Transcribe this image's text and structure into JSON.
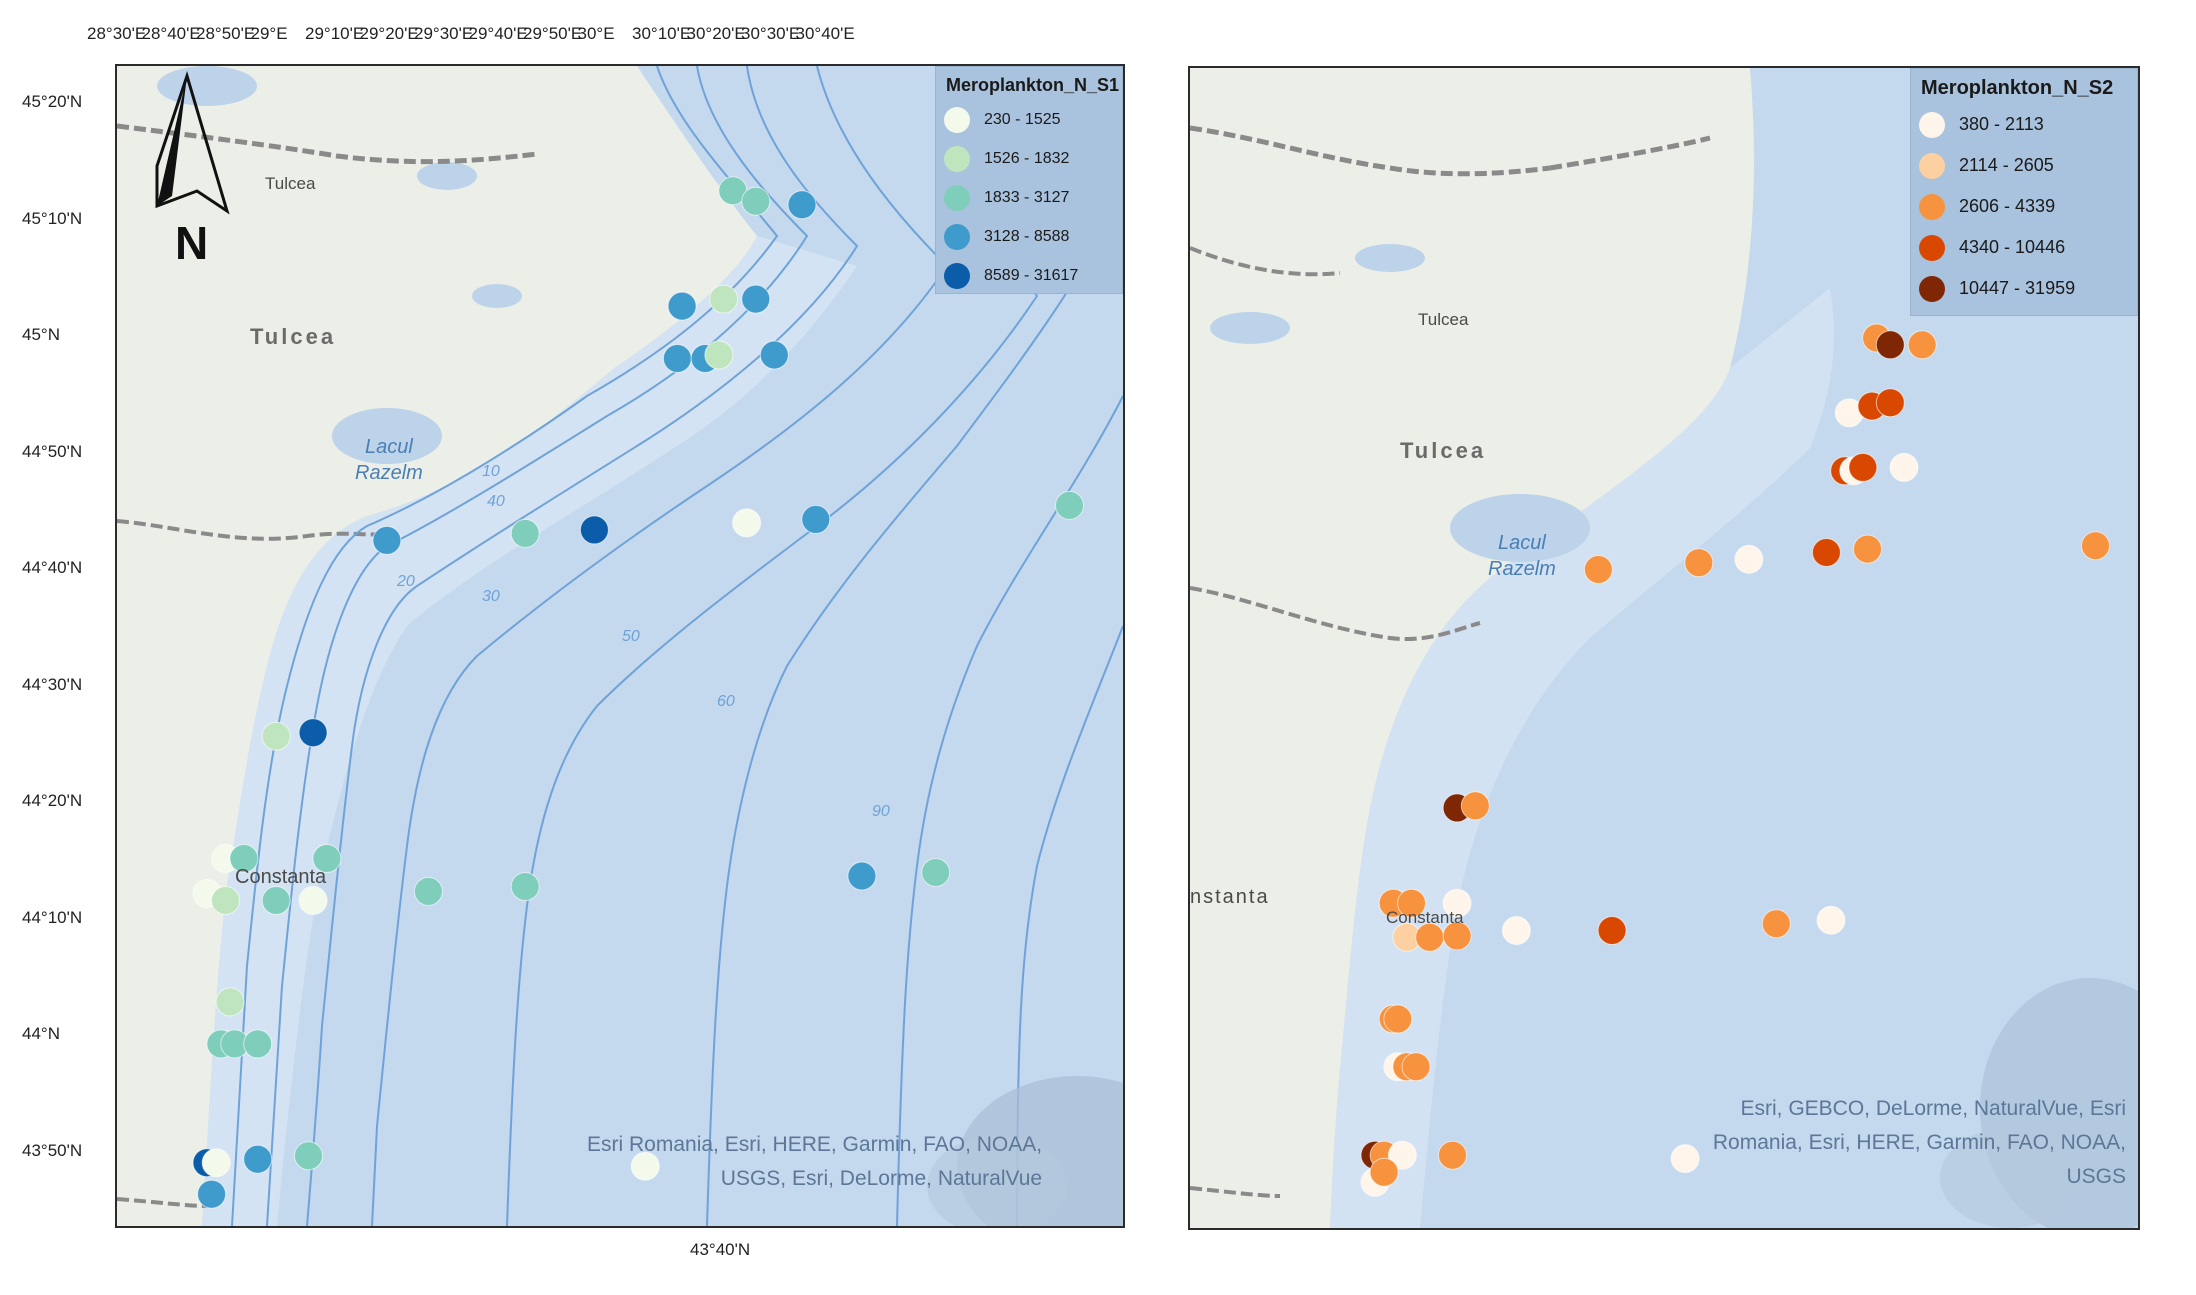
{
  "left_map": {
    "top_axis_labels": [
      "28°30'E",
      "28°40'E",
      "28°50'E",
      "29°E",
      "29°10'E",
      "29°20'E",
      "29°30'E",
      "29°40'E",
      "29°50'E",
      "30°E",
      "30°10'E",
      "30°20'E",
      "30°30'E",
      "30°40'E"
    ],
    "left_axis_labels": [
      "45°20'N",
      "45°10'N",
      "45°N",
      "44°50'N",
      "44°40'N",
      "44°30'N",
      "44°20'N",
      "44°10'N",
      "44°N",
      "43°50'N"
    ],
    "bottom_label": "43°40'N",
    "north_arrow_letter": "N",
    "places": {
      "tulcea_town": "Tulcea",
      "tulcea_region": "Tulcea",
      "lake_line1": "Lacul",
      "lake_line2": "Razelm",
      "constanta": "Constanta"
    },
    "legend": {
      "title": "Meroplankton_N_S1",
      "classes": [
        {
          "label": "230 - 1525",
          "color": "#f4faeb"
        },
        {
          "label": "1526 - 1832",
          "color": "#bfe5bf"
        },
        {
          "label": "1833 - 3127",
          "color": "#7fcdbb"
        },
        {
          "label": "3128 - 8588",
          "color": "#3f9bcb"
        },
        {
          "label": "8589 - 31617",
          "color": "#0b5ca9"
        }
      ]
    },
    "attribution_line1": "Esri Romania, Esri, HERE, Garmin, FAO, NOAA,",
    "attribution_line2": "USGS, Esri, DeLorme, NaturalVue",
    "stations": [
      {
        "lon": 29.82,
        "lat": 45.195,
        "cls": 2
      },
      {
        "lon": 29.87,
        "lat": 45.18,
        "cls": 2
      },
      {
        "lon": 29.97,
        "lat": 45.175,
        "cls": 3
      },
      {
        "lon": 29.71,
        "lat": 45.03,
        "cls": 3
      },
      {
        "lon": 29.8,
        "lat": 45.04,
        "cls": 1
      },
      {
        "lon": 29.87,
        "lat": 45.04,
        "cls": 3
      },
      {
        "lon": 29.7,
        "lat": 44.955,
        "cls": 3
      },
      {
        "lon": 29.76,
        "lat": 44.955,
        "cls": 3
      },
      {
        "lon": 29.79,
        "lat": 44.96,
        "cls": 1
      },
      {
        "lon": 29.91,
        "lat": 44.96,
        "cls": 3
      },
      {
        "lon": 29.07,
        "lat": 44.695,
        "cls": 3
      },
      {
        "lon": 29.37,
        "lat": 44.705,
        "cls": 2
      },
      {
        "lon": 29.52,
        "lat": 44.71,
        "cls": 4
      },
      {
        "lon": 29.85,
        "lat": 44.72,
        "cls": 0
      },
      {
        "lon": 30.0,
        "lat": 44.725,
        "cls": 3
      },
      {
        "lon": 30.55,
        "lat": 44.745,
        "cls": 2
      },
      {
        "lon": 28.83,
        "lat": 44.415,
        "cls": 1
      },
      {
        "lon": 28.91,
        "lat": 44.42,
        "cls": 4
      },
      {
        "lon": 28.72,
        "lat": 44.24,
        "cls": 0
      },
      {
        "lon": 28.76,
        "lat": 44.24,
        "cls": 2
      },
      {
        "lon": 28.94,
        "lat": 44.24,
        "cls": 2
      },
      {
        "lon": 28.68,
        "lat": 44.19,
        "cls": 0
      },
      {
        "lon": 28.72,
        "lat": 44.18,
        "cls": 1
      },
      {
        "lon": 28.83,
        "lat": 44.18,
        "cls": 2
      },
      {
        "lon": 28.91,
        "lat": 44.18,
        "cls": 0
      },
      {
        "lon": 29.16,
        "lat": 44.193,
        "cls": 2
      },
      {
        "lon": 29.37,
        "lat": 44.2,
        "cls": 2
      },
      {
        "lon": 30.1,
        "lat": 44.215,
        "cls": 3
      },
      {
        "lon": 30.26,
        "lat": 44.22,
        "cls": 2
      },
      {
        "lon": 28.73,
        "lat": 44.035,
        "cls": 1
      },
      {
        "lon": 28.71,
        "lat": 43.975,
        "cls": 2
      },
      {
        "lon": 28.74,
        "lat": 43.975,
        "cls": 2
      },
      {
        "lon": 28.79,
        "lat": 43.975,
        "cls": 2
      },
      {
        "lon": 28.68,
        "lat": 43.805,
        "cls": 4
      },
      {
        "lon": 28.7,
        "lat": 43.805,
        "cls": 0
      },
      {
        "lon": 28.79,
        "lat": 43.81,
        "cls": 3
      },
      {
        "lon": 28.9,
        "lat": 43.815,
        "cls": 2
      },
      {
        "lon": 29.63,
        "lat": 43.8,
        "cls": 0
      },
      {
        "lon": 28.69,
        "lat": 43.76,
        "cls": 3
      }
    ]
  },
  "right_map": {
    "places": {
      "tulcea_town": "Tulcea",
      "tulcea_region": "Tulcea",
      "lake_line1": "Lacul",
      "lake_line2": "Razelm",
      "constanta_partial": "nstanta",
      "constanta_city": "Constanta"
    },
    "legend": {
      "title": "Meroplankton_N_S2",
      "classes": [
        {
          "label": "380 - 2113",
          "color": "#fff5eb"
        },
        {
          "label": "2114 - 2605",
          "color": "#fdd0a2"
        },
        {
          "label": "2606 - 4339",
          "color": "#f7923e"
        },
        {
          "label": "4340 - 10446",
          "color": "#d94801"
        },
        {
          "label": "10447 - 31959",
          "color": "#7f2704"
        }
      ]
    },
    "attribution_line1": "Esri, GEBCO, DeLorme, NaturalVue, Esri",
    "attribution_line2": "Romania, Esri, HERE, Garmin, FAO, NOAA,",
    "attribution_line3": "USGS",
    "stations": [
      {
        "lon": 29.8,
        "lat": 45.0,
        "cls": 2
      },
      {
        "lon": 29.83,
        "lat": 44.99,
        "cls": 4
      },
      {
        "lon": 29.9,
        "lat": 44.99,
        "cls": 2
      },
      {
        "lon": 29.74,
        "lat": 44.89,
        "cls": 0
      },
      {
        "lon": 29.79,
        "lat": 44.9,
        "cls": 3
      },
      {
        "lon": 29.83,
        "lat": 44.905,
        "cls": 3
      },
      {
        "lon": 29.73,
        "lat": 44.805,
        "cls": 3
      },
      {
        "lon": 29.75,
        "lat": 44.805,
        "cls": 0
      },
      {
        "lon": 29.77,
        "lat": 44.81,
        "cls": 3
      },
      {
        "lon": 29.86,
        "lat": 44.81,
        "cls": 0
      },
      {
        "lon": 29.19,
        "lat": 44.66,
        "cls": 2
      },
      {
        "lon": 29.41,
        "lat": 44.67,
        "cls": 2
      },
      {
        "lon": 29.52,
        "lat": 44.675,
        "cls": 0
      },
      {
        "lon": 29.69,
        "lat": 44.685,
        "cls": 3
      },
      {
        "lon": 29.78,
        "lat": 44.69,
        "cls": 2
      },
      {
        "lon": 30.28,
        "lat": 44.695,
        "cls": 2
      },
      {
        "lon": 28.88,
        "lat": 44.31,
        "cls": 4
      },
      {
        "lon": 28.92,
        "lat": 44.313,
        "cls": 2
      },
      {
        "lon": 28.74,
        "lat": 44.17,
        "cls": 2
      },
      {
        "lon": 28.78,
        "lat": 44.17,
        "cls": 2
      },
      {
        "lon": 28.88,
        "lat": 44.17,
        "cls": 0
      },
      {
        "lon": 28.77,
        "lat": 44.12,
        "cls": 1
      },
      {
        "lon": 28.82,
        "lat": 44.12,
        "cls": 2
      },
      {
        "lon": 28.88,
        "lat": 44.122,
        "cls": 2
      },
      {
        "lon": 29.01,
        "lat": 44.13,
        "cls": 0
      },
      {
        "lon": 29.22,
        "lat": 44.13,
        "cls": 3
      },
      {
        "lon": 29.58,
        "lat": 44.14,
        "cls": 2
      },
      {
        "lon": 29.7,
        "lat": 44.145,
        "cls": 0
      },
      {
        "lon": 28.74,
        "lat": 44.0,
        "cls": 2
      },
      {
        "lon": 28.75,
        "lat": 44.0,
        "cls": 2
      },
      {
        "lon": 28.75,
        "lat": 43.93,
        "cls": 0
      },
      {
        "lon": 28.77,
        "lat": 43.93,
        "cls": 2
      },
      {
        "lon": 28.79,
        "lat": 43.93,
        "cls": 2
      },
      {
        "lon": 28.7,
        "lat": 43.8,
        "cls": 4
      },
      {
        "lon": 28.72,
        "lat": 43.8,
        "cls": 2
      },
      {
        "lon": 28.76,
        "lat": 43.8,
        "cls": 0
      },
      {
        "lon": 28.87,
        "lat": 43.8,
        "cls": 2
      },
      {
        "lon": 29.38,
        "lat": 43.795,
        "cls": 0
      },
      {
        "lon": 28.7,
        "lat": 43.76,
        "cls": 0
      },
      {
        "lon": 28.72,
        "lat": 43.775,
        "cls": 2
      }
    ]
  }
}
